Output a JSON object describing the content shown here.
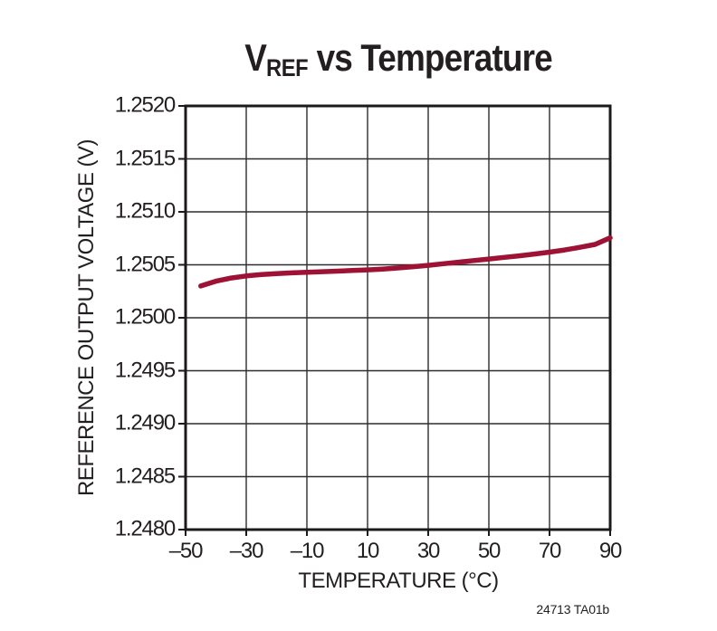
{
  "title": {
    "prefix": "V",
    "subscript": "REF",
    "suffix": " vs Temperature"
  },
  "note": "24713 TA01b",
  "colors": {
    "curve": "#9D1235",
    "grid": "#2f2c2d",
    "border": "#1c191a",
    "text": "#231f20",
    "background": "#ffffff"
  },
  "chart_data": {
    "type": "line",
    "title": "VREF vs Temperature",
    "xlabel": "TEMPERATURE (°C)",
    "ylabel": "REFERENCE OUTPUT VOLTAGE (V)",
    "xlim": [
      -50,
      90
    ],
    "ylim": [
      1.248,
      1.252
    ],
    "xticks": [
      -50,
      -30,
      -10,
      10,
      30,
      50,
      70,
      90
    ],
    "xtick_labels": [
      "–50",
      "–30",
      "–10",
      "10",
      "30",
      "50",
      "70",
      "90"
    ],
    "yticks": [
      1.252,
      1.2515,
      1.251,
      1.2505,
      1.25,
      1.2495,
      1.249,
      1.2485,
      1.248
    ],
    "ytick_labels": [
      "1.2520",
      "1.2515",
      "1.2510",
      "1.2505",
      "1.2500",
      "1.2495",
      "1.2490",
      "1.2485",
      "1.2480"
    ],
    "grid": true,
    "legend": false,
    "series": [
      {
        "name": "VREF",
        "color": "#9D1235",
        "x": [
          -45,
          -40,
          -35,
          -30,
          -25,
          -20,
          -15,
          -10,
          -5,
          0,
          5,
          10,
          15,
          20,
          25,
          30,
          35,
          40,
          45,
          50,
          55,
          60,
          65,
          70,
          75,
          80,
          85,
          90
        ],
        "y": [
          1.2503,
          1.250345,
          1.250375,
          1.250395,
          1.250408,
          1.250417,
          1.250424,
          1.25043,
          1.250435,
          1.25044,
          1.250446,
          1.250452,
          1.25046,
          1.25047,
          1.250482,
          1.250495,
          1.25051,
          1.250525,
          1.25054,
          1.250555,
          1.25057,
          1.250585,
          1.250602,
          1.25062,
          1.25064,
          1.250665,
          1.250692,
          1.250755
        ]
      }
    ]
  }
}
